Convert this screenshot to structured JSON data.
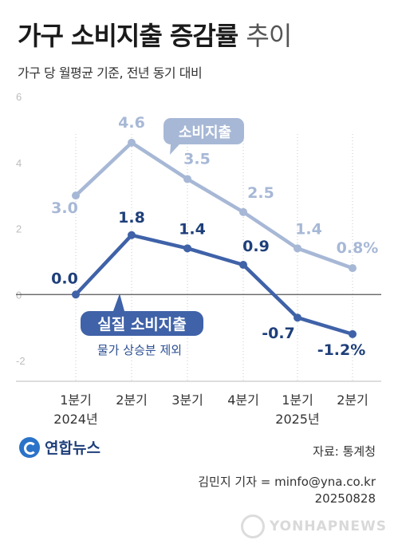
{
  "title": {
    "main": "가구 소비지출 증감률",
    "light": "추이"
  },
  "subtitle": "가구 당 월평균 기준, 전년 동기 대비",
  "chart_data": {
    "type": "line",
    "ylim": [
      -2,
      6
    ],
    "yticks": [
      "6",
      "4",
      "2",
      "0",
      "-2"
    ],
    "yticks_values": [
      6,
      4,
      2,
      0,
      -2
    ],
    "categories": [
      "1분기",
      "2분기",
      "3분기",
      "4분기",
      "1분기",
      "2분기"
    ],
    "years": [
      {
        "label": "2024년",
        "index": 0
      },
      {
        "label": "2025년",
        "index": 4
      }
    ],
    "series": [
      {
        "name": "소비지출",
        "values": [
          3.0,
          4.6,
          3.5,
          2.5,
          1.4,
          0.8
        ],
        "labels": [
          "3.0",
          "4.6",
          "3.5",
          "2.5",
          "1.4",
          "0.8%"
        ],
        "color": "#a7b8d6"
      },
      {
        "name": "실질 소비지출",
        "note": "물가 상승분 제외",
        "values": [
          0.0,
          1.8,
          1.4,
          0.9,
          -0.7,
          -1.2
        ],
        "labels": [
          "0.0",
          "1.8",
          "1.4",
          "0.9",
          "-0.7",
          "-1.2%"
        ],
        "color": "#3f62a8"
      }
    ]
  },
  "footer": {
    "source": "자료: 통계청",
    "reporter": "김민지 기자 = minfo@yna.co.kr",
    "date": "20250828",
    "logo_text": "연합뉴스",
    "watermark": "YONHAPNEWS"
  }
}
